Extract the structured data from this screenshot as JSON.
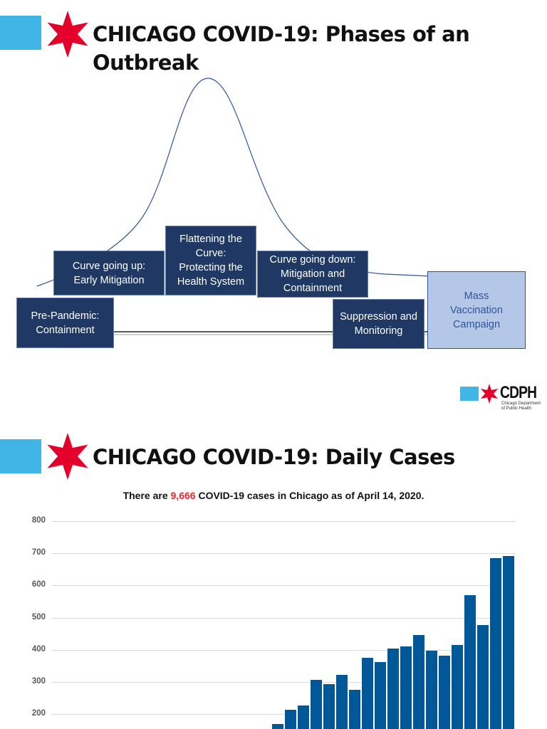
{
  "slide1": {
    "title_line1": "CHICAGO COVID-19: Phases of an",
    "title_line2": "Outbreak",
    "phases": [
      {
        "label": "Pre-Pandemic: Containment"
      },
      {
        "label": "Curve going up: Early Mitigation"
      },
      {
        "label": "Flattening the Curve: Protecting the Health System"
      },
      {
        "label": "Curve going down: Mitigation and Containment"
      },
      {
        "label": "Suppression and Monitoring"
      },
      {
        "label": "Mass Vaccination Campaign"
      }
    ],
    "logo": {
      "text": "CDPH",
      "subtext": "Chicago Department of Public Health"
    }
  },
  "slide2": {
    "title": "CHICAGO COVID-19: Daily Cases",
    "subtitle_pre": "There are ",
    "subtitle_count": "9,666",
    "subtitle_post": " COVID-19 cases in Chicago as of April 14, 2020."
  },
  "colors": {
    "brand_blue": "#41b6e6",
    "star_red": "#e4002b",
    "box_navy": "#1f3864",
    "bar_blue": "#005899",
    "count_red": "#e8262b"
  },
  "chart_data": {
    "type": "bar",
    "title": "",
    "xlabel": "",
    "ylabel": "",
    "ylim": [
      0,
      800
    ],
    "yticks": [
      200,
      300,
      400,
      500,
      600,
      700,
      800
    ],
    "grid": true,
    "values": [
      170,
      214,
      227,
      307,
      293,
      322,
      276,
      375,
      362,
      404,
      411,
      446,
      397,
      382,
      415,
      570,
      477,
      685,
      692
    ]
  }
}
